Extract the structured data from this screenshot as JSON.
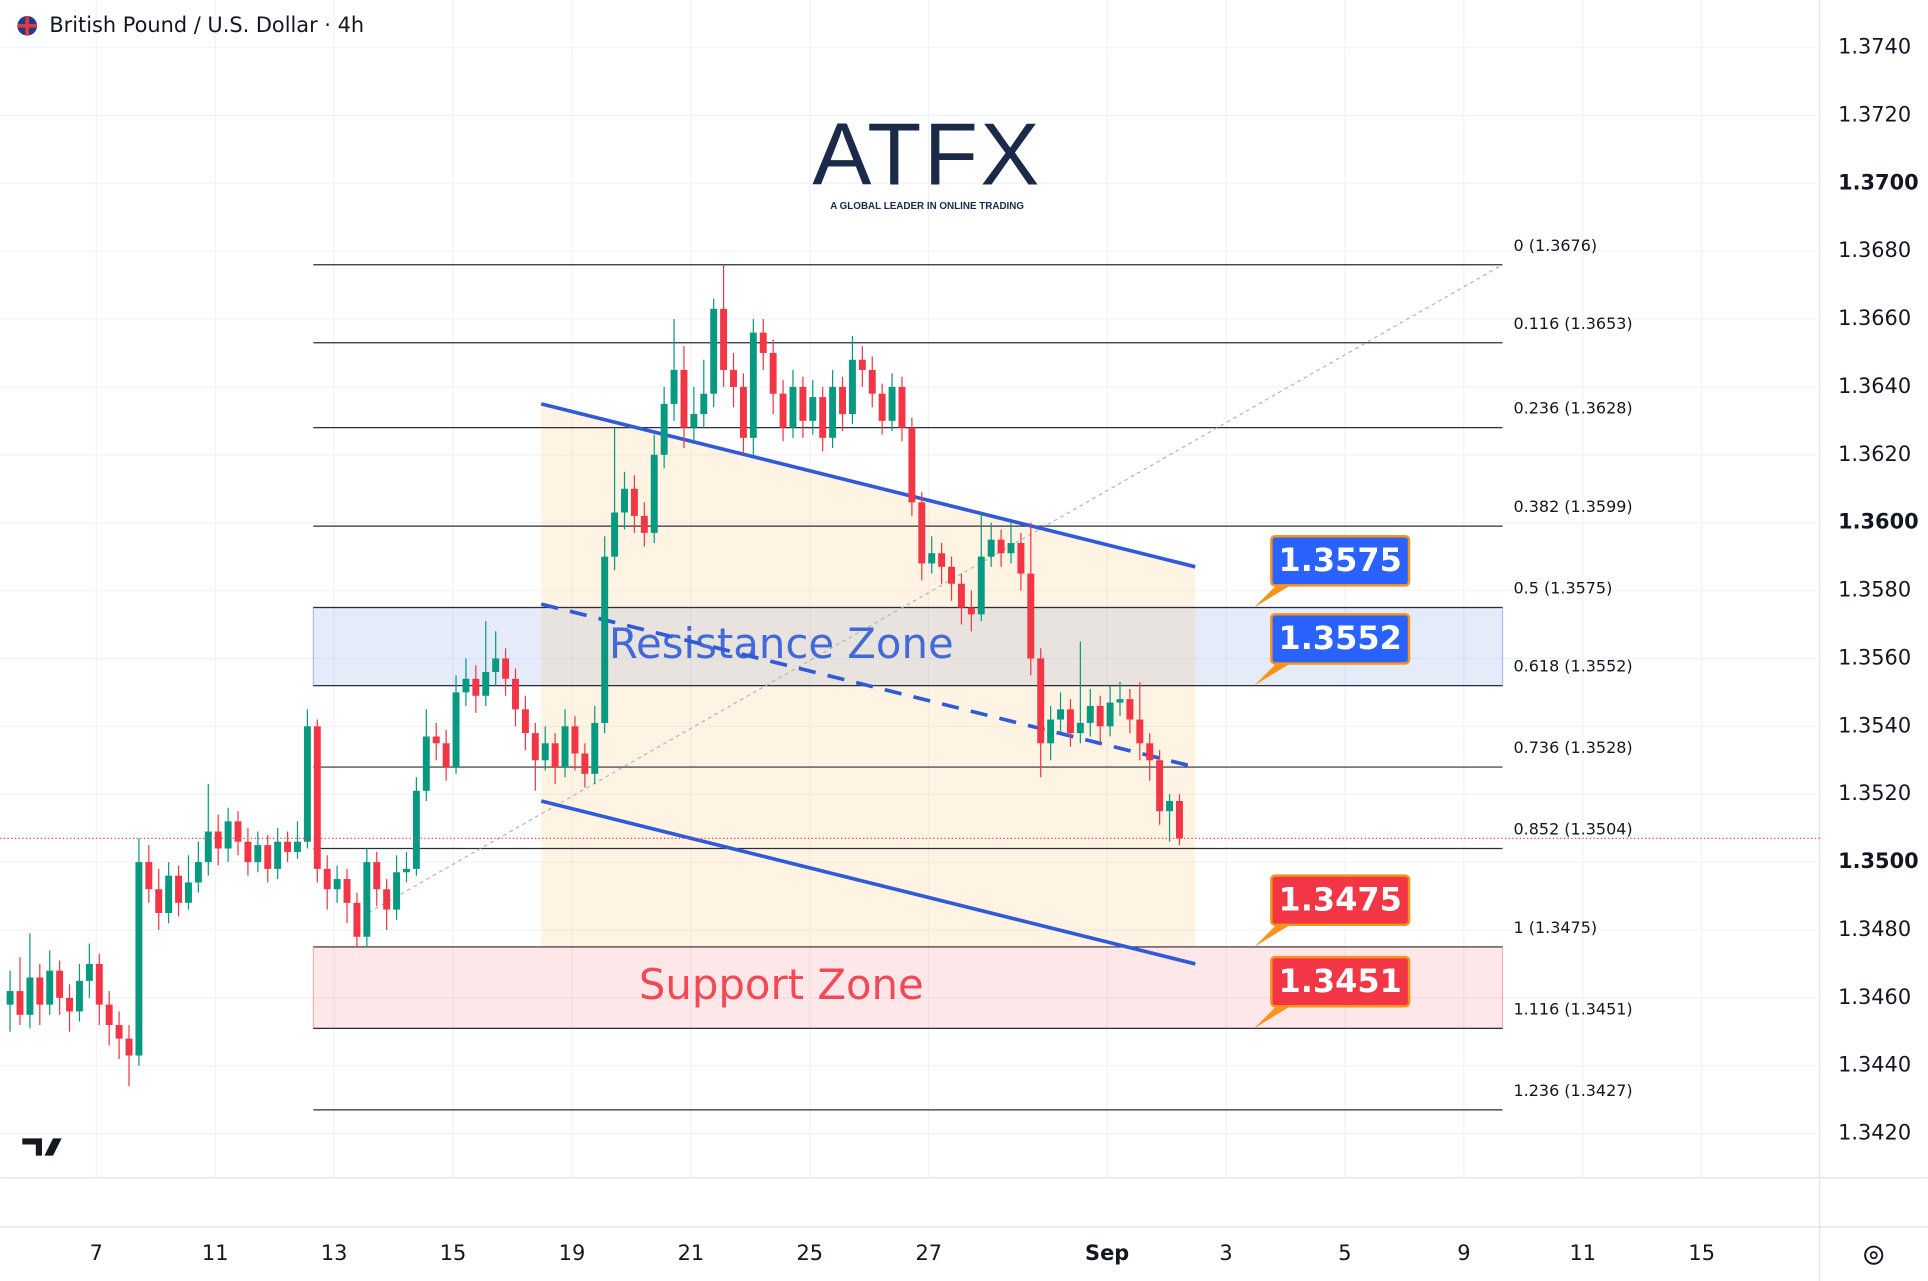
{
  "chart_data": {
    "type": "candlestick",
    "title": "British Pound / U.S. Dollar · 4h",
    "up_color": "#089981",
    "down_color": "#f23645",
    "grid": true,
    "ylim": [
      1.3407,
      1.3754
    ],
    "yticks": [
      {
        "value": 1.342,
        "label": "1.3420"
      },
      {
        "value": 1.344,
        "label": "1.3440"
      },
      {
        "value": 1.346,
        "label": "1.3460"
      },
      {
        "value": 1.348,
        "label": "1.3480"
      },
      {
        "value": 1.35,
        "label": "1.3500"
      },
      {
        "value": 1.352,
        "label": "1.3520"
      },
      {
        "value": 1.354,
        "label": "1.3540"
      },
      {
        "value": 1.356,
        "label": "1.3560"
      },
      {
        "value": 1.358,
        "label": "1.3580"
      },
      {
        "value": 1.36,
        "label": "1.3600"
      },
      {
        "value": 1.362,
        "label": "1.3620"
      },
      {
        "value": 1.364,
        "label": "1.3640"
      },
      {
        "value": 1.366,
        "label": "1.3660"
      },
      {
        "value": 1.368,
        "label": "1.3680"
      },
      {
        "value": 1.37,
        "label": "1.3700"
      },
      {
        "value": 1.372,
        "label": "1.3720"
      },
      {
        "value": 1.374,
        "label": "1.3740"
      }
    ],
    "xlim": [
      -1,
      182.6
    ],
    "xticks": [
      {
        "value": 8.7,
        "label": "7"
      },
      {
        "value": 20.7,
        "label": "11"
      },
      {
        "value": 32.7,
        "label": "13"
      },
      {
        "value": 44.7,
        "label": "15"
      },
      {
        "value": 56.7,
        "label": "19"
      },
      {
        "value": 68.7,
        "label": "21"
      },
      {
        "value": 80.7,
        "label": "25"
      },
      {
        "value": 92.7,
        "label": "27"
      },
      {
        "value": 110.7,
        "label": "Sep"
      },
      {
        "value": 122.7,
        "label": "3"
      },
      {
        "value": 134.7,
        "label": "5"
      },
      {
        "value": 146.7,
        "label": "9"
      },
      {
        "value": 158.7,
        "label": "11"
      },
      {
        "value": 170.7,
        "label": "15"
      }
    ],
    "ohlc": [
      [
        1.3458,
        1.3468,
        1.345,
        1.3462
      ],
      [
        1.3462,
        1.3472,
        1.3452,
        1.3455
      ],
      [
        1.3455,
        1.3479,
        1.3451,
        1.3466
      ],
      [
        1.3466,
        1.347,
        1.3452,
        1.3458
      ],
      [
        1.3458,
        1.3474,
        1.3455,
        1.3468
      ],
      [
        1.3468,
        1.3471,
        1.3455,
        1.346
      ],
      [
        1.346,
        1.3464,
        1.345,
        1.3456
      ],
      [
        1.3456,
        1.347,
        1.3453,
        1.3465
      ],
      [
        1.3465,
        1.3476,
        1.346,
        1.347
      ],
      [
        1.347,
        1.3473,
        1.3452,
        1.3458
      ],
      [
        1.3458,
        1.3462,
        1.3446,
        1.3452
      ],
      [
        1.3452,
        1.3456,
        1.3442,
        1.3448
      ],
      [
        1.3448,
        1.3452,
        1.3434,
        1.3443
      ],
      [
        1.3443,
        1.3507,
        1.344,
        1.35
      ],
      [
        1.35,
        1.3505,
        1.3488,
        1.3492
      ],
      [
        1.3492,
        1.3498,
        1.348,
        1.3485
      ],
      [
        1.3485,
        1.35,
        1.3482,
        1.3496
      ],
      [
        1.3496,
        1.3499,
        1.3484,
        1.3488
      ],
      [
        1.3488,
        1.3502,
        1.3486,
        1.3494
      ],
      [
        1.3494,
        1.3506,
        1.3491,
        1.35
      ],
      [
        1.35,
        1.3523,
        1.3496,
        1.3509
      ],
      [
        1.3509,
        1.3514,
        1.3499,
        1.3504
      ],
      [
        1.3504,
        1.3516,
        1.35,
        1.3512
      ],
      [
        1.3512,
        1.3515,
        1.3502,
        1.3506
      ],
      [
        1.3506,
        1.351,
        1.3496,
        1.35
      ],
      [
        1.35,
        1.3509,
        1.3497,
        1.3505
      ],
      [
        1.3505,
        1.3508,
        1.3494,
        1.3498
      ],
      [
        1.3498,
        1.351,
        1.3495,
        1.3506
      ],
      [
        1.3506,
        1.3509,
        1.35,
        1.3503
      ],
      [
        1.3503,
        1.3512,
        1.3501,
        1.3506
      ],
      [
        1.3506,
        1.3545,
        1.3504,
        1.354
      ],
      [
        1.354,
        1.3542,
        1.3494,
        1.3498
      ],
      [
        1.3498,
        1.3502,
        1.3486,
        1.3492
      ],
      [
        1.3492,
        1.3499,
        1.3488,
        1.3495
      ],
      [
        1.3495,
        1.3498,
        1.3482,
        1.3488
      ],
      [
        1.3488,
        1.3491,
        1.3475,
        1.3478
      ],
      [
        1.3478,
        1.3504,
        1.3475,
        1.35
      ],
      [
        1.35,
        1.3503,
        1.3487,
        1.3492
      ],
      [
        1.3492,
        1.3495,
        1.348,
        1.3486
      ],
      [
        1.3486,
        1.3502,
        1.3483,
        1.3497
      ],
      [
        1.3497,
        1.3503,
        1.3494,
        1.3498
      ],
      [
        1.3498,
        1.3525,
        1.3496,
        1.3521
      ],
      [
        1.3521,
        1.3545,
        1.3518,
        1.3537
      ],
      [
        1.3537,
        1.3541,
        1.353,
        1.3535
      ],
      [
        1.3535,
        1.3539,
        1.3524,
        1.3528
      ],
      [
        1.3528,
        1.3555,
        1.3526,
        1.355
      ],
      [
        1.355,
        1.356,
        1.3546,
        1.3554
      ],
      [
        1.3554,
        1.3558,
        1.3544,
        1.3549
      ],
      [
        1.3549,
        1.3571,
        1.3546,
        1.3556
      ],
      [
        1.3556,
        1.3568,
        1.3552,
        1.356
      ],
      [
        1.356,
        1.3563,
        1.3549,
        1.3554
      ],
      [
        1.3554,
        1.3557,
        1.354,
        1.3545
      ],
      [
        1.3545,
        1.3549,
        1.3533,
        1.3538
      ],
      [
        1.3538,
        1.3541,
        1.3521,
        1.353
      ],
      [
        1.353,
        1.354,
        1.3527,
        1.3535
      ],
      [
        1.3535,
        1.3538,
        1.3523,
        1.3528
      ],
      [
        1.3528,
        1.3545,
        1.3525,
        1.354
      ],
      [
        1.354,
        1.3543,
        1.3527,
        1.3532
      ],
      [
        1.3532,
        1.3535,
        1.3522,
        1.3526
      ],
      [
        1.3526,
        1.3546,
        1.3523,
        1.3541
      ],
      [
        1.3541,
        1.3596,
        1.3538,
        1.359
      ],
      [
        1.359,
        1.3628,
        1.3586,
        1.3603
      ],
      [
        1.3603,
        1.3615,
        1.3598,
        1.361
      ],
      [
        1.361,
        1.3614,
        1.3597,
        1.3602
      ],
      [
        1.3602,
        1.3606,
        1.3593,
        1.3597
      ],
      [
        1.3597,
        1.3626,
        1.3594,
        1.362
      ],
      [
        1.362,
        1.364,
        1.3616,
        1.3635
      ],
      [
        1.3635,
        1.366,
        1.363,
        1.3645
      ],
      [
        1.3645,
        1.3652,
        1.3622,
        1.3628
      ],
      [
        1.3628,
        1.364,
        1.3624,
        1.3632
      ],
      [
        1.3632,
        1.3648,
        1.3628,
        1.3638
      ],
      [
        1.3638,
        1.3666,
        1.3634,
        1.3663
      ],
      [
        1.3663,
        1.3676,
        1.364,
        1.3645
      ],
      [
        1.3645,
        1.365,
        1.3634,
        1.364
      ],
      [
        1.364,
        1.3644,
        1.362,
        1.3625
      ],
      [
        1.3625,
        1.366,
        1.362,
        1.3656
      ],
      [
        1.3656,
        1.366,
        1.3645,
        1.365
      ],
      [
        1.365,
        1.3654,
        1.3632,
        1.3638
      ],
      [
        1.3638,
        1.3642,
        1.3624,
        1.3628
      ],
      [
        1.3628,
        1.3645,
        1.3625,
        1.364
      ],
      [
        1.364,
        1.3643,
        1.3625,
        1.363
      ],
      [
        1.363,
        1.3642,
        1.3626,
        1.3637
      ],
      [
        1.3637,
        1.364,
        1.3621,
        1.3625
      ],
      [
        1.3625,
        1.3645,
        1.3622,
        1.364
      ],
      [
        1.364,
        1.3643,
        1.3627,
        1.3632
      ],
      [
        1.3632,
        1.3655,
        1.3629,
        1.3648
      ],
      [
        1.3648,
        1.3652,
        1.364,
        1.3645
      ],
      [
        1.3645,
        1.3649,
        1.3634,
        1.3638
      ],
      [
        1.3638,
        1.3641,
        1.3626,
        1.363
      ],
      [
        1.363,
        1.3644,
        1.3627,
        1.364
      ],
      [
        1.364,
        1.3643,
        1.3624,
        1.3628
      ],
      [
        1.3628,
        1.3631,
        1.3602,
        1.3606
      ],
      [
        1.3606,
        1.3609,
        1.3583,
        1.3588
      ],
      [
        1.3588,
        1.3596,
        1.3585,
        1.3591
      ],
      [
        1.3591,
        1.3594,
        1.3582,
        1.3587
      ],
      [
        1.3587,
        1.359,
        1.3577,
        1.3582
      ],
      [
        1.3582,
        1.3585,
        1.357,
        1.3575
      ],
      [
        1.3575,
        1.358,
        1.3568,
        1.3573
      ],
      [
        1.3573,
        1.3603,
        1.3571,
        1.359
      ],
      [
        1.359,
        1.36,
        1.3587,
        1.3595
      ],
      [
        1.3595,
        1.3598,
        1.3587,
        1.3591
      ],
      [
        1.3591,
        1.36,
        1.3588,
        1.3594
      ],
      [
        1.3594,
        1.3597,
        1.358,
        1.3585
      ],
      [
        1.3585,
        1.36,
        1.3555,
        1.356
      ],
      [
        1.356,
        1.3563,
        1.3525,
        1.3535
      ],
      [
        1.3535,
        1.3546,
        1.353,
        1.3542
      ],
      [
        1.3542,
        1.355,
        1.3538,
        1.3545
      ],
      [
        1.3545,
        1.3548,
        1.3534,
        1.3538
      ],
      [
        1.3538,
        1.3565,
        1.3535,
        1.3541
      ],
      [
        1.3541,
        1.3551,
        1.3537,
        1.3546
      ],
      [
        1.3546,
        1.3549,
        1.3535,
        1.354
      ],
      [
        1.354,
        1.3552,
        1.3537,
        1.3547
      ],
      [
        1.3547,
        1.3553,
        1.3543,
        1.3548
      ],
      [
        1.3548,
        1.3551,
        1.3538,
        1.3542
      ],
      [
        1.3542,
        1.3553,
        1.353,
        1.3535
      ],
      [
        1.3535,
        1.3538,
        1.3524,
        1.353
      ],
      [
        1.353,
        1.3533,
        1.3511,
        1.3515
      ],
      [
        1.3515,
        1.352,
        1.3506,
        1.3518
      ],
      [
        1.3518,
        1.352,
        1.3505,
        1.3507
      ]
    ],
    "last_price": 1.3507,
    "fib_x": [
      30.6,
      150.6
    ],
    "fib_levels": [
      {
        "label": "0 (1.3676)",
        "price": 1.3676
      },
      {
        "label": "0.116 (1.3653)",
        "price": 1.3653
      },
      {
        "label": "0.236 (1.3628)",
        "price": 1.3628
      },
      {
        "label": "0.382 (1.3599)",
        "price": 1.3599
      },
      {
        "label": "0.5 (1.3575)",
        "price": 1.3575
      },
      {
        "label": "0.618 (1.3552)",
        "price": 1.3552
      },
      {
        "label": "0.736 (1.3528)",
        "price": 1.3528
      },
      {
        "label": "0.852 (1.3504)",
        "price": 1.3504
      },
      {
        "label": "1 (1.3475)",
        "price": 1.3475
      },
      {
        "label": "1.116 (1.3451)",
        "price": 1.3451
      },
      {
        "label": "1.236 (1.3427)",
        "price": 1.3427
      }
    ],
    "zones": [
      {
        "label": "Resistance Zone",
        "from": 1.3552,
        "to": 1.3575,
        "color": "#2f5bd8"
      },
      {
        "label": "Support Zone",
        "from": 1.3451,
        "to": 1.3475,
        "color": "#f23645"
      }
    ],
    "channel": {
      "color": "#2f5bd8",
      "lines": [
        {
          "style": "solid",
          "x": [
            53.6,
            119.6
          ],
          "y": [
            1.3635,
            1.3587
          ]
        },
        {
          "style": "dashed",
          "x": [
            53.6,
            119.6
          ],
          "y": [
            1.3576,
            1.3528
          ]
        },
        {
          "style": "solid",
          "x": [
            53.6,
            119.6
          ],
          "y": [
            1.3518,
            1.347
          ]
        }
      ]
    },
    "callouts": [
      {
        "value": 1.3575,
        "color": "#2962ff"
      },
      {
        "value": 1.3552,
        "color": "#2962ff"
      },
      {
        "value": 1.3475,
        "color": "#f23645"
      },
      {
        "value": 1.3451,
        "color": "#f23645"
      }
    ],
    "logo": {
      "text": "ATFX",
      "tagline": "A GLOBAL LEADER IN ONLINE TRADING"
    }
  }
}
